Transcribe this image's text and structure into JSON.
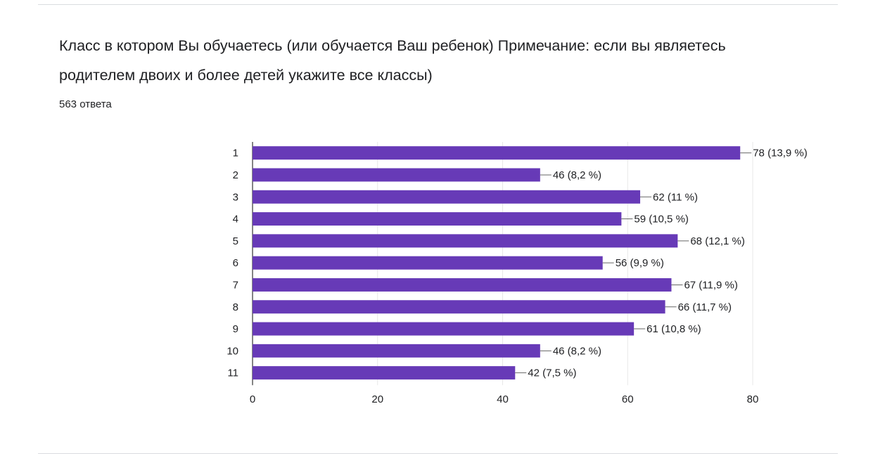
{
  "question": {
    "title": "Класс в котором Вы обучаетесь (или обучается Ваш ребенок) Примечание: если вы являетесь родителем двоих и более детей укажите все классы)",
    "response_count": "563 ответа"
  },
  "colors": {
    "bar": "#673ab7",
    "gridline": "#e8e8e8",
    "axis": "#333333",
    "connector": "#666666"
  },
  "chart_data": {
    "type": "bar",
    "orientation": "horizontal",
    "title": "",
    "xlabel": "",
    "ylabel": "",
    "categories": [
      "1",
      "2",
      "3",
      "4",
      "5",
      "6",
      "7",
      "8",
      "9",
      "10",
      "11"
    ],
    "values": [
      78,
      46,
      62,
      59,
      68,
      56,
      67,
      66,
      61,
      46,
      42
    ],
    "data_labels": [
      "78 (13,9 %)",
      "46 (8,2 %)",
      "62 (11 %)",
      "59 (10,5 %)",
      "68 (12,1 %)",
      "56 (9,9 %)",
      "67 (11,9 %)",
      "66 (11,7 %)",
      "61 (10,8 %)",
      "46 (8,2 %)",
      "42 (7,5 %)"
    ],
    "xlim": [
      0,
      80
    ],
    "x_ticks": [
      "0",
      "20",
      "40",
      "60",
      "80"
    ],
    "grid": true,
    "legend": "none"
  }
}
